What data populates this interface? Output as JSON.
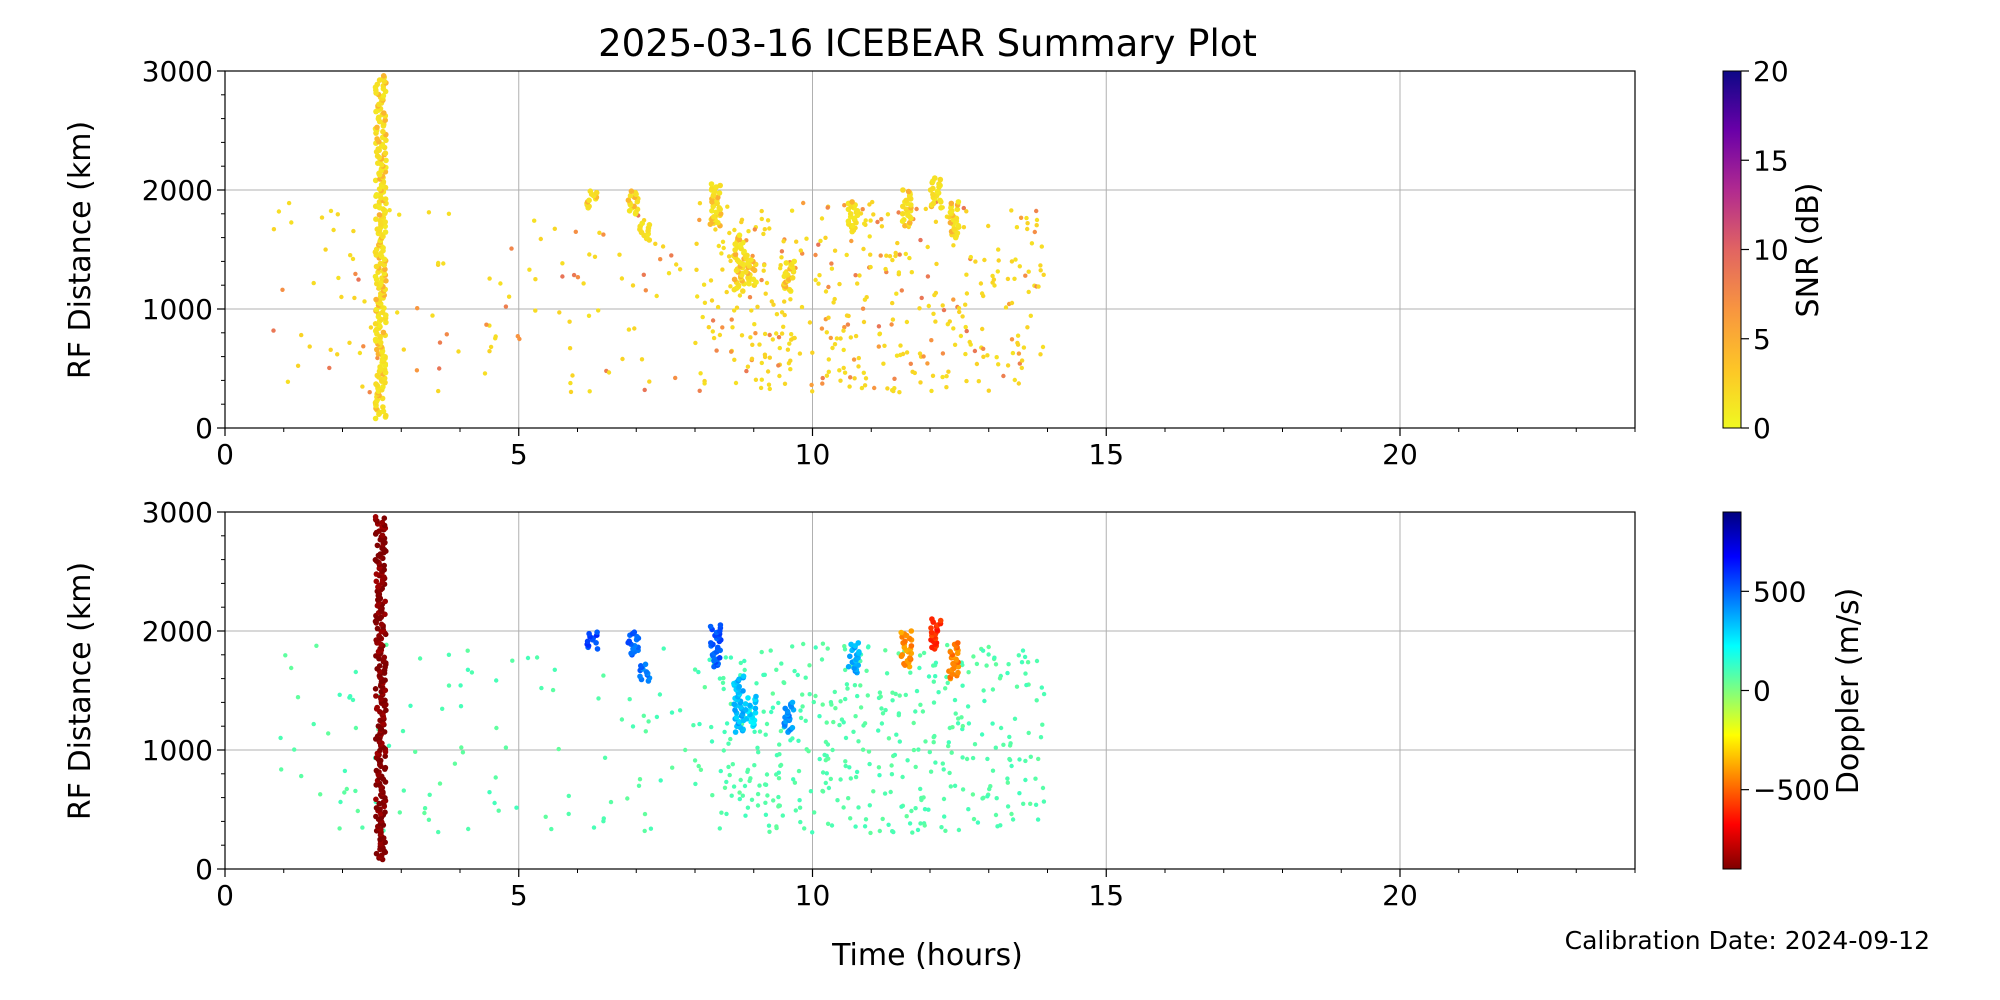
{
  "title": "2025-03-16 ICEBEAR Summary Plot",
  "calibration_text": "Calibration Date: 2024-09-12",
  "chart_data": [
    {
      "type": "scatter",
      "name": "snr",
      "title": "2025-03-16 ICEBEAR Summary Plot",
      "xlabel": "Time (hours)",
      "ylabel": "RF Distance (km)",
      "xlim": [
        0,
        24
      ],
      "ylim": [
        0,
        3000
      ],
      "xticks": [
        0,
        5,
        10,
        15,
        20
      ],
      "yticks": [
        0,
        1000,
        2000,
        3000
      ],
      "grid": true,
      "colorbar": {
        "label": "SNR (dB)",
        "range": [
          0,
          20
        ],
        "ticks": [
          0,
          5,
          10,
          15,
          20
        ],
        "tick_labels": [
          "0",
          "5",
          "10",
          "15",
          "20"
        ],
        "colormap": "plasma_r",
        "colors": [
          "#f0f921",
          "#fdc527",
          "#f89540",
          "#e16462",
          "#b12a90",
          "#6a00a8",
          "#0d0887"
        ]
      },
      "dense_segments": [
        {
          "x": 2.65,
          "y0": 80,
          "y1": 2960
        },
        {
          "x": 6.25,
          "y0": 1850,
          "y1": 1990
        },
        {
          "x": 6.95,
          "y0": 1800,
          "y1": 1990
        },
        {
          "x": 7.15,
          "y0": 1580,
          "y1": 1720
        },
        {
          "x": 8.35,
          "y0": 1700,
          "y1": 2050
        },
        {
          "x": 8.75,
          "y0": 1150,
          "y1": 1620
        },
        {
          "x": 8.95,
          "y0": 1200,
          "y1": 1450
        },
        {
          "x": 9.6,
          "y0": 1150,
          "y1": 1400
        },
        {
          "x": 10.7,
          "y0": 1650,
          "y1": 1900
        },
        {
          "x": 11.6,
          "y0": 1700,
          "y1": 2000
        },
        {
          "x": 12.1,
          "y0": 1850,
          "y1": 2100
        },
        {
          "x": 12.4,
          "y0": 1600,
          "y1": 1900
        }
      ],
      "scatter_region": {
        "x0": 0.7,
        "x1": 13.95,
        "y0": 300,
        "y1": 1900,
        "count": 520,
        "dense_x0": 8.0,
        "dense_x1": 13.95
      },
      "snr_typical": 1.5,
      "snr_high_fraction": 0.25,
      "snr_high": 6
    },
    {
      "type": "scatter",
      "name": "doppler",
      "xlabel": "Time (hours)",
      "ylabel": "RF Distance (km)",
      "xlim": [
        0,
        24
      ],
      "ylim": [
        0,
        3000
      ],
      "xticks": [
        0,
        5,
        10,
        15,
        20
      ],
      "yticks": [
        0,
        1000,
        2000,
        3000
      ],
      "grid": true,
      "colorbar": {
        "label": "Doppler (m/s)",
        "range": [
          -900,
          900
        ],
        "ticks": [
          -500,
          0,
          500
        ],
        "tick_labels": [
          "−500",
          "0",
          "500"
        ],
        "colormap": "jet_r",
        "colors": [
          "#7f0000",
          "#ff0000",
          "#ff7f00",
          "#ffff00",
          "#7fff7f",
          "#00ffff",
          "#007fff",
          "#0000ff",
          "#00007f"
        ]
      },
      "dense_segments": [
        {
          "x": 2.65,
          "y0": 80,
          "y1": 2960,
          "doppler": -900
        },
        {
          "x": 6.25,
          "y0": 1850,
          "y1": 1990,
          "doppler": 550
        },
        {
          "x": 6.95,
          "y0": 1800,
          "y1": 1990,
          "doppler": 500
        },
        {
          "x": 7.15,
          "y0": 1580,
          "y1": 1720,
          "doppler": 480
        },
        {
          "x": 8.35,
          "y0": 1700,
          "y1": 2050,
          "doppler": 520
        },
        {
          "x": 8.75,
          "y0": 1150,
          "y1": 1620,
          "doppler": 350
        },
        {
          "x": 8.95,
          "y0": 1200,
          "y1": 1450,
          "doppler": 300
        },
        {
          "x": 9.6,
          "y0": 1150,
          "y1": 1400,
          "doppler": 420
        },
        {
          "x": 10.7,
          "y0": 1650,
          "y1": 1900,
          "doppler": 380
        },
        {
          "x": 11.6,
          "y0": 1700,
          "y1": 2000,
          "doppler": -420
        },
        {
          "x": 12.1,
          "y0": 1850,
          "y1": 2100,
          "doppler": -600
        },
        {
          "x": 12.4,
          "y0": 1600,
          "y1": 1900,
          "doppler": -450
        }
      ],
      "scatter_region": {
        "x0": 0.7,
        "x1": 13.95,
        "y0": 300,
        "y1": 1900,
        "count": 520,
        "dense_x0": 8.0,
        "dense_x1": 13.95
      },
      "doppler_typical": 80
    }
  ]
}
